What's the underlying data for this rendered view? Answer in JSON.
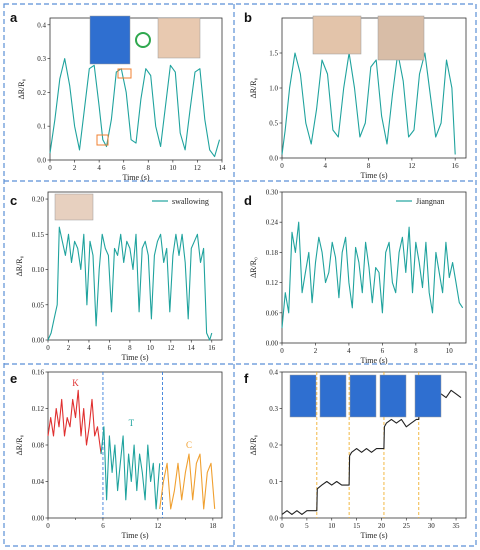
{
  "panels": [
    {
      "id": "a",
      "label": "a",
      "type": "line",
      "color": "#20a39e",
      "xlabel": "Time (s)",
      "ylabel": "ΔR/R₀",
      "xlim": [
        0,
        14
      ],
      "ylim": [
        0,
        0.42
      ],
      "xticks": [
        0,
        2,
        4,
        6,
        8,
        10,
        12,
        14
      ],
      "yticks": [
        0.0,
        0.1,
        0.2,
        0.3,
        0.4
      ],
      "series": [
        {
          "x": [
            0.0,
            0.4,
            0.8,
            1.2,
            1.6,
            2.0,
            2.4,
            2.8,
            3.2,
            3.6,
            4.0,
            4.3,
            4.6,
            5.0,
            5.4,
            5.8,
            6.2,
            6.6,
            7.0,
            7.4,
            7.8,
            8.2,
            8.6,
            9.0,
            9.4,
            9.8,
            10.2,
            10.6,
            11.0,
            11.4,
            11.8,
            12.2,
            12.6,
            13.0,
            13.4,
            13.8
          ],
          "y": [
            0.02,
            0.12,
            0.24,
            0.3,
            0.22,
            0.1,
            0.03,
            0.15,
            0.27,
            0.28,
            0.16,
            0.06,
            0.04,
            0.12,
            0.26,
            0.27,
            0.2,
            0.06,
            0.05,
            0.18,
            0.27,
            0.25,
            0.1,
            0.04,
            0.16,
            0.28,
            0.26,
            0.08,
            0.03,
            0.15,
            0.26,
            0.27,
            0.12,
            0.03,
            0.01,
            0.06
          ]
        }
      ],
      "annotations": [
        "photo of gloved hand",
        "rotate arrows",
        "photo of wrist sensor"
      ]
    },
    {
      "id": "b",
      "label": "b",
      "type": "line",
      "color": "#20a39e",
      "xlabel": "Time (s)",
      "ylabel": "ΔR/R₀",
      "xlim": [
        0,
        17
      ],
      "ylim": [
        0,
        2.0
      ],
      "xticks": [
        0,
        4,
        8,
        12,
        16
      ],
      "yticks": [
        0.0,
        0.5,
        1.0,
        1.5
      ],
      "series": [
        {
          "x": [
            0.0,
            0.3,
            0.7,
            1.2,
            1.7,
            2.2,
            2.7,
            3.2,
            3.7,
            4.2,
            4.7,
            5.2,
            5.7,
            6.2,
            6.7,
            7.2,
            7.7,
            8.2,
            8.7,
            9.2,
            9.7,
            10.2,
            10.7,
            11.2,
            11.7,
            12.2,
            12.7,
            13.2,
            13.7,
            14.2,
            14.7,
            15.2,
            15.7,
            16.0
          ],
          "y": [
            0.05,
            0.4,
            1.0,
            1.5,
            1.2,
            0.5,
            0.2,
            0.7,
            1.4,
            1.2,
            0.4,
            0.3,
            1.0,
            1.5,
            1.0,
            0.3,
            0.5,
            1.3,
            1.4,
            0.6,
            0.2,
            0.9,
            1.5,
            1.1,
            0.3,
            0.4,
            1.2,
            1.5,
            0.9,
            0.3,
            0.5,
            1.4,
            1.0,
            0.05
          ]
        }
      ],
      "annotations": [
        "photo of arm",
        "photo of elbow"
      ]
    },
    {
      "id": "c",
      "label": "c",
      "type": "line",
      "color": "#20a39e",
      "xlabel": "Time (s)",
      "ylabel": "ΔR/R₀",
      "xlim": [
        0,
        17
      ],
      "ylim": [
        0,
        0.21
      ],
      "xticks": [
        0,
        2,
        4,
        6,
        8,
        10,
        12,
        14,
        16
      ],
      "yticks": [
        0.0,
        0.05,
        0.1,
        0.15,
        0.2
      ],
      "legend": "swallowing",
      "series": [
        {
          "x": [
            0.0,
            0.3,
            0.6,
            0.9,
            1.1,
            1.4,
            1.7,
            2.0,
            2.3,
            2.6,
            2.9,
            3.2,
            3.5,
            3.8,
            4.1,
            4.4,
            4.7,
            5.0,
            5.3,
            5.6,
            5.9,
            6.2,
            6.5,
            6.8,
            7.1,
            7.4,
            7.7,
            8.0,
            8.3,
            8.6,
            8.9,
            9.2,
            9.5,
            9.8,
            10.1,
            10.4,
            10.7,
            11.0,
            11.3,
            11.6,
            11.9,
            12.2,
            12.5,
            12.8,
            13.1,
            13.4,
            13.7,
            14.0,
            14.3,
            14.6,
            14.9,
            15.2,
            15.5,
            15.8,
            16.0
          ],
          "y": [
            0.0,
            0.01,
            0.03,
            0.05,
            0.16,
            0.14,
            0.12,
            0.15,
            0.11,
            0.14,
            0.13,
            0.1,
            0.15,
            0.05,
            0.14,
            0.12,
            0.02,
            0.1,
            0.15,
            0.13,
            0.12,
            0.04,
            0.13,
            0.12,
            0.15,
            0.11,
            0.14,
            0.13,
            0.1,
            0.15,
            0.04,
            0.13,
            0.14,
            0.12,
            0.03,
            0.12,
            0.14,
            0.15,
            0.11,
            0.13,
            0.04,
            0.12,
            0.15,
            0.12,
            0.15,
            0.11,
            0.03,
            0.13,
            0.14,
            0.15,
            0.11,
            0.13,
            0.01,
            0.0,
            0.01
          ]
        }
      ],
      "annotations": [
        "photo of neck patch"
      ]
    },
    {
      "id": "d",
      "label": "d",
      "type": "line",
      "color": "#20a39e",
      "xlabel": "Time (s)",
      "ylabel": "ΔR/R₀",
      "xlim": [
        0,
        11
      ],
      "ylim": [
        0,
        0.3
      ],
      "xticks": [
        0,
        2,
        4,
        6,
        8,
        10
      ],
      "yticks": [
        0.0,
        0.06,
        0.12,
        0.18,
        0.24,
        0.3
      ],
      "legend": "Jiangnan",
      "series": [
        {
          "x": [
            0.0,
            0.2,
            0.4,
            0.6,
            0.8,
            1.0,
            1.2,
            1.4,
            1.6,
            1.8,
            2.0,
            2.2,
            2.4,
            2.6,
            2.8,
            3.0,
            3.2,
            3.4,
            3.6,
            3.8,
            4.0,
            4.2,
            4.4,
            4.6,
            4.8,
            5.0,
            5.2,
            5.4,
            5.6,
            5.8,
            6.0,
            6.2,
            6.4,
            6.6,
            6.8,
            7.0,
            7.2,
            7.4,
            7.6,
            7.8,
            8.0,
            8.2,
            8.4,
            8.6,
            8.8,
            9.0,
            9.2,
            9.4,
            9.6,
            9.8,
            10.0,
            10.2,
            10.4,
            10.6,
            10.8
          ],
          "y": [
            0.03,
            0.1,
            0.06,
            0.22,
            0.18,
            0.24,
            0.1,
            0.14,
            0.18,
            0.08,
            0.16,
            0.21,
            0.18,
            0.12,
            0.14,
            0.2,
            0.17,
            0.09,
            0.18,
            0.21,
            0.12,
            0.07,
            0.19,
            0.16,
            0.1,
            0.2,
            0.15,
            0.08,
            0.15,
            0.14,
            0.06,
            0.18,
            0.2,
            0.12,
            0.1,
            0.18,
            0.21,
            0.14,
            0.23,
            0.1,
            0.2,
            0.16,
            0.11,
            0.2,
            0.1,
            0.06,
            0.18,
            0.14,
            0.1,
            0.2,
            0.13,
            0.16,
            0.12,
            0.08,
            0.07
          ]
        }
      ]
    },
    {
      "id": "e",
      "label": "e",
      "type": "line",
      "xlabel": "Time (s)",
      "ylabel": "ΔR/R₀",
      "xlim": [
        0,
        19
      ],
      "ylim": [
        0,
        0.16
      ],
      "xticks": [
        0,
        6,
        12,
        18
      ],
      "minor_xticks": [
        3,
        9,
        15
      ],
      "yticks": [
        0.0,
        0.04,
        0.08,
        0.12,
        0.16
      ],
      "dividers": [
        6,
        12.5
      ],
      "series": [
        {
          "name": "K",
          "color": "#e03030",
          "x": [
            0.0,
            0.3,
            0.6,
            0.9,
            1.2,
            1.5,
            1.8,
            2.1,
            2.4,
            2.7,
            3.0,
            3.3,
            3.6,
            3.9,
            4.2,
            4.5,
            4.8,
            5.1,
            5.4,
            5.8
          ],
          "y": [
            0.09,
            0.11,
            0.09,
            0.12,
            0.1,
            0.13,
            0.09,
            0.11,
            0.1,
            0.13,
            0.11,
            0.14,
            0.09,
            0.12,
            0.08,
            0.1,
            0.13,
            0.09,
            0.1,
            0.07
          ]
        },
        {
          "name": "T",
          "color": "#20a39e",
          "x": [
            5.8,
            6.1,
            6.4,
            6.7,
            7.0,
            7.3,
            7.6,
            7.9,
            8.2,
            8.5,
            8.8,
            9.1,
            9.4,
            9.7,
            10.0,
            10.3,
            10.6,
            10.9,
            11.2,
            11.5,
            11.8,
            12.2
          ],
          "y": [
            0.07,
            0.1,
            0.02,
            0.09,
            0.05,
            0.08,
            0.03,
            0.06,
            0.09,
            0.02,
            0.07,
            0.04,
            0.08,
            0.03,
            0.07,
            0.05,
            0.02,
            0.08,
            0.04,
            0.06,
            0.01,
            0.06
          ]
        },
        {
          "name": "C",
          "color": "#f0a030",
          "x": [
            12.2,
            12.6,
            13.0,
            13.4,
            13.8,
            14.2,
            14.6,
            15.0,
            15.4,
            15.8,
            16.2,
            16.6,
            17.0,
            17.4,
            17.8,
            18.2
          ],
          "y": [
            0.01,
            0.04,
            0.06,
            0.01,
            0.03,
            0.06,
            0.02,
            0.05,
            0.07,
            0.02,
            0.06,
            0.07,
            0.01,
            0.05,
            0.06,
            0.01
          ]
        }
      ]
    },
    {
      "id": "f",
      "label": "f",
      "type": "line",
      "color": "#222222",
      "xlabel": "Time (s)",
      "ylabel": "ΔR/R₀",
      "xlim": [
        0,
        37
      ],
      "ylim": [
        0,
        0.4
      ],
      "xticks": [
        0,
        5,
        10,
        15,
        20,
        25,
        30,
        35
      ],
      "yticks": [
        0.0,
        0.1,
        0.2,
        0.3,
        0.4
      ],
      "dividers": [
        7,
        13.5,
        20.5,
        27.5
      ],
      "series": [
        {
          "x": [
            0,
            1,
            2,
            3,
            4,
            5,
            6,
            7,
            7.1,
            8,
            9,
            10,
            11,
            12,
            13.5,
            13.6,
            14,
            15,
            16,
            17,
            18,
            19,
            20.5,
            20.6,
            21,
            22,
            23,
            24,
            25,
            26,
            27,
            27.5,
            27.6,
            28,
            29,
            30,
            31,
            32,
            33,
            34,
            35,
            36
          ],
          "y": [
            0.01,
            0.02,
            0.01,
            0.02,
            0.01,
            0.02,
            0.02,
            0.02,
            0.08,
            0.09,
            0.1,
            0.09,
            0.1,
            0.09,
            0.09,
            0.17,
            0.18,
            0.19,
            0.18,
            0.19,
            0.18,
            0.19,
            0.19,
            0.25,
            0.26,
            0.27,
            0.26,
            0.27,
            0.25,
            0.26,
            0.27,
            0.27,
            0.33,
            0.34,
            0.32,
            0.35,
            0.33,
            0.34,
            0.33,
            0.35,
            0.34,
            0.33
          ]
        }
      ],
      "annotations": [
        "photos of finger bending sequence"
      ]
    }
  ]
}
